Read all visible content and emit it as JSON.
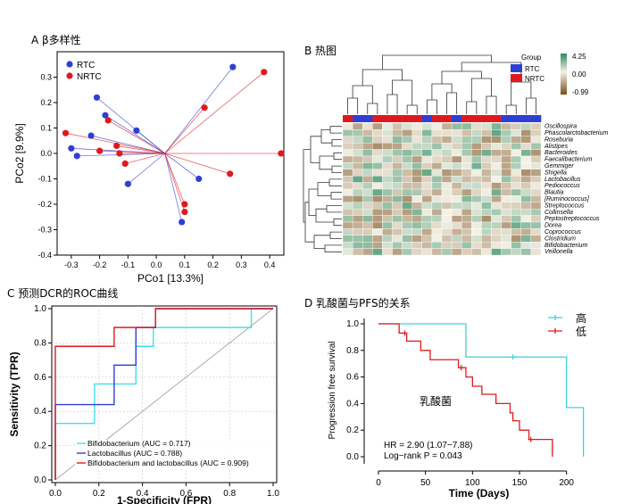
{
  "panels": {
    "A": {
      "title": "A β多样性"
    },
    "B": {
      "title": "B 热图"
    },
    "C": {
      "title": "C 预测DCR的ROC曲线"
    },
    "D": {
      "title": "D 乳酸菌与PFS的关系"
    }
  },
  "chart_data": [
    {
      "type": "scatter",
      "panel": "A",
      "xlabel": "PCo1 [13.3%]",
      "ylabel": "PCo2 [9.9%]",
      "xlim": [
        -0.35,
        0.45
      ],
      "ylim": [
        -0.4,
        0.4
      ],
      "xticks": [
        "-0.3",
        "-0.2",
        "-0.1",
        "0.0",
        "0.1",
        "0.2",
        "0.3",
        "0.4"
      ],
      "yticks": [
        "-0.4",
        "-0.3",
        "-0.2",
        "-0.1",
        "0.0",
        "0.1",
        "0.2",
        "0.3"
      ],
      "legend_position": "top-left",
      "centroid": [
        0.03,
        0.0
      ],
      "series": [
        {
          "name": "RTC",
          "color": "#2e3fd6",
          "points": [
            [
              -0.21,
              0.22
            ],
            [
              -0.18,
              0.15
            ],
            [
              -0.23,
              0.07
            ],
            [
              -0.3,
              0.02
            ],
            [
              -0.28,
              -0.01
            ],
            [
              -0.07,
              0.09
            ],
            [
              -0.1,
              -0.12
            ],
            [
              0.27,
              0.34
            ],
            [
              0.15,
              -0.1
            ],
            [
              0.09,
              -0.27
            ]
          ]
        },
        {
          "name": "NRTC",
          "color": "#e0191f",
          "points": [
            [
              -0.17,
              0.13
            ],
            [
              -0.32,
              0.08
            ],
            [
              -0.14,
              0.03
            ],
            [
              -0.13,
              0.0
            ],
            [
              -0.2,
              0.01
            ],
            [
              -0.11,
              -0.04
            ],
            [
              0.38,
              0.32
            ],
            [
              0.17,
              0.18
            ],
            [
              0.44,
              0.0
            ],
            [
              0.26,
              -0.08
            ],
            [
              0.1,
              -0.2
            ],
            [
              0.1,
              -0.23
            ]
          ]
        }
      ]
    },
    {
      "type": "heatmap",
      "panel": "B",
      "legend_title": "Group",
      "groups": [
        {
          "name": "RTC",
          "color": "#2e3fd6"
        },
        {
          "name": "NRTC",
          "color": "#e0191f"
        }
      ],
      "column_groups": [
        "NRTC",
        "RTC",
        "RTC",
        "NRTC",
        "NRTC",
        "NRTC",
        "NRTC",
        "NRTC",
        "RTC",
        "NRTC",
        "NRTC",
        "RTC",
        "NRTC",
        "NRTC",
        "NRTC",
        "NRTC",
        "RTC",
        "RTC",
        "RTC",
        "RTC"
      ],
      "scale": {
        "max_label": "4.25",
        "mid_label": "0.00",
        "min_label": "-0.99",
        "colors": [
          "#7a4e1c",
          "#f4f1e6",
          "#2b8a5f"
        ]
      },
      "rows": [
        "Oscillospira",
        "Phascolarctobacterium",
        "Roseburia",
        "Alistipes",
        "Bacteroides",
        "Faecalibacterium",
        "Gemmiger",
        "Shigella",
        "Lactobacillus",
        "Pediococcus",
        "Blautia",
        "[Ruminococcus]",
        "Streptococcus",
        "Collinsella",
        "Peptostreptococcus",
        "Dorea",
        "Coprococcus",
        "Clostridium",
        "Bifidobacterium",
        "Veillonella"
      ]
    },
    {
      "type": "line",
      "panel": "C",
      "xlabel": "1-Specificity (FPR)",
      "ylabel": "Sensitivity (TPR)",
      "xlim": [
        0,
        1
      ],
      "ylim": [
        0,
        1
      ],
      "xticks": [
        "0.0",
        "0.2",
        "0.4",
        "0.6",
        "0.8",
        "1.0"
      ],
      "yticks": [
        "0.0",
        "0.2",
        "0.4",
        "0.6",
        "0.8",
        "1.0"
      ],
      "legend_position": "bottom-left",
      "series": [
        {
          "name": "Bifidobacterium (AUC = 0.717)",
          "color": "#3fe0e8",
          "points": [
            [
              0,
              0
            ],
            [
              0,
              0.33
            ],
            [
              0.18,
              0.33
            ],
            [
              0.18,
              0.56
            ],
            [
              0.37,
              0.56
            ],
            [
              0.37,
              0.67
            ],
            [
              0.37,
              0.78
            ],
            [
              0.45,
              0.78
            ],
            [
              0.45,
              0.89
            ],
            [
              0.9,
              0.89
            ],
            [
              0.9,
              1
            ],
            [
              1,
              1
            ]
          ]
        },
        {
          "name": "Lactobacillus (AUC = 0.788)",
          "color": "#2e3fd6",
          "points": [
            [
              0,
              0
            ],
            [
              0,
              0.44
            ],
            [
              0.27,
              0.44
            ],
            [
              0.27,
              0.67
            ],
            [
              0.37,
              0.67
            ],
            [
              0.37,
              0.89
            ],
            [
              0.46,
              0.89
            ],
            [
              0.46,
              1
            ],
            [
              1,
              1
            ]
          ]
        },
        {
          "name": "Bifidobacterium and lactobacillus (AUC = 0.909)",
          "color": "#e0191f",
          "points": [
            [
              0,
              0
            ],
            [
              0,
              0.78
            ],
            [
              0.27,
              0.78
            ],
            [
              0.27,
              0.89
            ],
            [
              0.46,
              0.89
            ],
            [
              0.46,
              1
            ],
            [
              1,
              1
            ]
          ]
        }
      ]
    },
    {
      "type": "line",
      "panel": "D",
      "xlabel": "Time (Days)",
      "ylabel": "Progression free survival",
      "xlim": [
        0,
        225
      ],
      "ylim": [
        0,
        1
      ],
      "xticks": [
        "0",
        "50",
        "100",
        "150",
        "200"
      ],
      "yticks": [
        "0.0",
        "0.2",
        "0.4",
        "0.6",
        "0.8",
        "1.0"
      ],
      "legend_position": "top-right",
      "center_label": "乳酸菌",
      "stats": [
        "HR = 2.90 (1.07−7.88)",
        "Log−rank P = 0.043"
      ],
      "series": [
        {
          "name": "高",
          "color": "#3fd0d8",
          "points": [
            [
              0,
              1
            ],
            [
              93,
              1
            ],
            [
              93,
              0.75
            ],
            [
              200,
              0.75
            ],
            [
              200,
              0.37
            ],
            [
              218,
              0.37
            ],
            [
              218,
              0
            ]
          ],
          "censor": [
            [
              143,
              0.75
            ]
          ]
        },
        {
          "name": "低",
          "color": "#e0191f",
          "points": [
            [
              0,
              1
            ],
            [
              22,
              1
            ],
            [
              22,
              0.93
            ],
            [
              30,
              0.93
            ],
            [
              30,
              0.87
            ],
            [
              45,
              0.87
            ],
            [
              45,
              0.8
            ],
            [
              55,
              0.8
            ],
            [
              55,
              0.73
            ],
            [
              85,
              0.73
            ],
            [
              85,
              0.67
            ],
            [
              93,
              0.67
            ],
            [
              93,
              0.6
            ],
            [
              100,
              0.6
            ],
            [
              100,
              0.53
            ],
            [
              110,
              0.53
            ],
            [
              110,
              0.47
            ],
            [
              125,
              0.47
            ],
            [
              125,
              0.4
            ],
            [
              140,
              0.4
            ],
            [
              140,
              0.33
            ],
            [
              143,
              0.33
            ],
            [
              143,
              0.27
            ],
            [
              150,
              0.27
            ],
            [
              150,
              0.2
            ],
            [
              160,
              0.2
            ],
            [
              160,
              0.13
            ],
            [
              185,
              0.13
            ],
            [
              185,
              0
            ]
          ],
          "censor": [
            [
              28,
              0.93
            ],
            [
              88,
              0.67
            ],
            [
              162,
              0.13
            ]
          ]
        }
      ]
    }
  ]
}
